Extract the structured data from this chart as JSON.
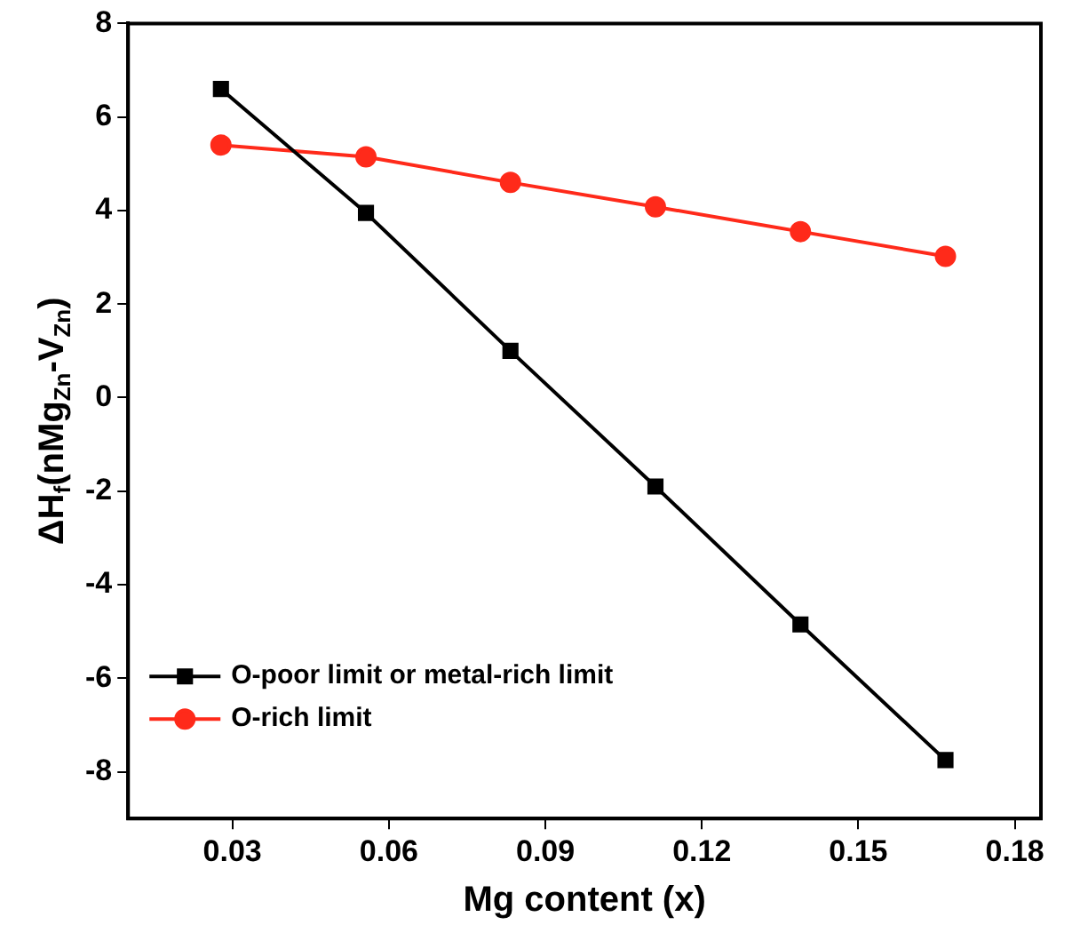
{
  "chart_data": {
    "type": "line",
    "xlabel": "Mg content (x)",
    "ylabel": "ΔH$_{f}$(nMg$_{Zn}$-V$_{Zn}$)",
    "x": [
      0.0278,
      0.0556,
      0.0833,
      0.1111,
      0.1389,
      0.1667
    ],
    "series": [
      {
        "name": "O-poor limit or metal-rich limit",
        "color": "#000000",
        "marker": "square",
        "values": [
          6.6,
          3.95,
          1.0,
          -1.9,
          -4.85,
          -7.75
        ]
      },
      {
        "name": "O-rich limit",
        "color": "#ff2a1a",
        "marker": "circle",
        "values": [
          5.4,
          5.15,
          4.6,
          4.08,
          3.55,
          3.02
        ]
      }
    ],
    "xlim": [
      0.01,
      0.185
    ],
    "xticks": [
      0.03,
      0.06,
      0.09,
      0.12,
      0.15,
      0.18
    ],
    "ylim": [
      -9,
      8
    ],
    "yticks": [
      -8,
      -6,
      -4,
      -2,
      0,
      2,
      4,
      6,
      8
    ],
    "grid": false,
    "legend": "bottom left",
    "line_style": "solid"
  }
}
